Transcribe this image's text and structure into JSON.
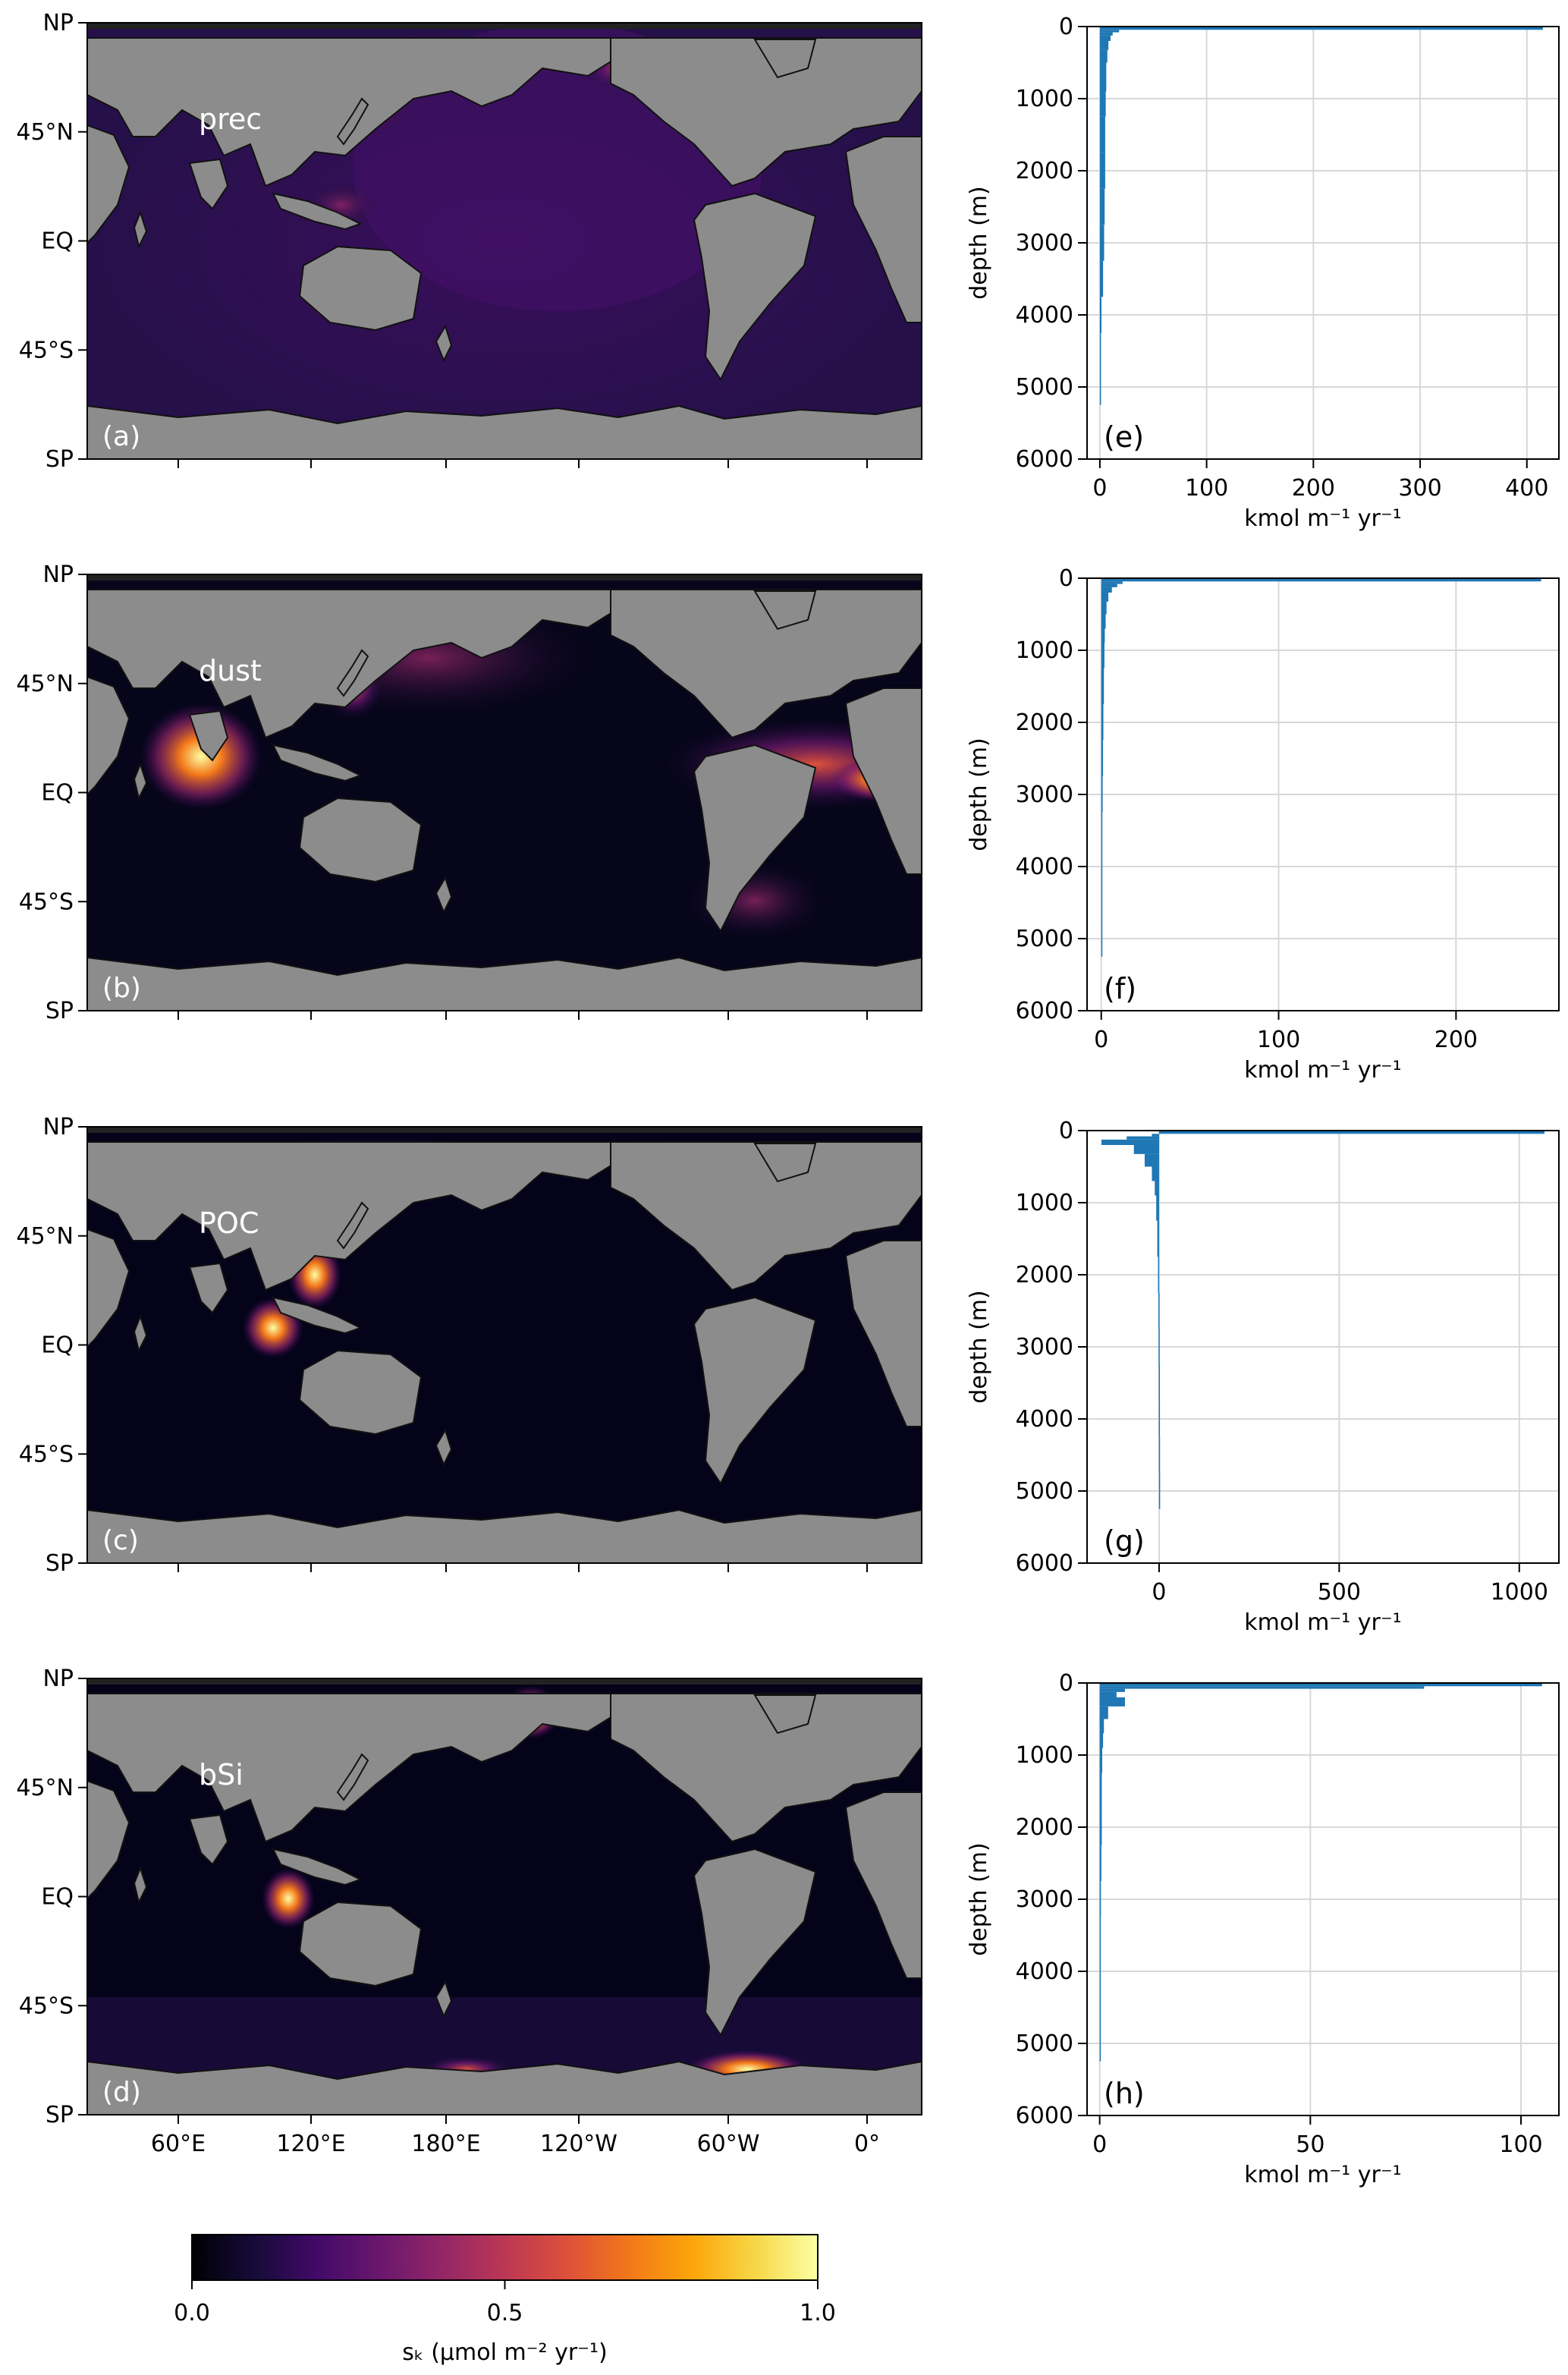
{
  "map_axis": {
    "lat_ticks": [
      "NP",
      "45°N",
      "EQ",
      "45°S",
      "SP"
    ],
    "lon_ticks": [
      "60°E",
      "120°E",
      "180°E",
      "120°W",
      "60°W",
      "0°"
    ]
  },
  "colorbar": {
    "ticks": [
      "0.0",
      "0.5",
      "1.0"
    ],
    "label": "sₖ (μmol m⁻² yr⁻¹)",
    "colormap": "inferno",
    "range": [
      0.0,
      1.0
    ]
  },
  "colors": {
    "land": "#8c8c8c",
    "antarctic_ice": "#3c3c3c",
    "profile_bar": "#1f77b4",
    "grid": "#d8d8d8"
  },
  "panels": [
    {
      "map_panel": "(a)",
      "profile_panel": "(e)",
      "tracer": "prec"
    },
    {
      "map_panel": "(b)",
      "profile_panel": "(f)",
      "tracer": "dust"
    },
    {
      "map_panel": "(c)",
      "profile_panel": "(g)",
      "tracer": "POC"
    },
    {
      "map_panel": "(d)",
      "profile_panel": "(h)",
      "tracer": "bSi"
    }
  ],
  "chart_data": [
    {
      "type": "bar",
      "orientation": "horizontal",
      "panel": "(e)",
      "xlabel": "kmol m⁻¹ yr⁻¹",
      "ylabel": "depth (m)",
      "xlim": [
        -12,
        430
      ],
      "ylim": [
        6000,
        0
      ],
      "xticks": [
        0,
        100,
        200,
        300,
        400
      ],
      "yticks": [
        0,
        1000,
        2000,
        3000,
        4000,
        5000,
        6000
      ],
      "grid": true,
      "depths": [
        30,
        60,
        100,
        150,
        250,
        400,
        600,
        800,
        1000,
        1500,
        2000,
        2500,
        3000,
        3500,
        4000,
        4500,
        5000
      ],
      "values": [
        415,
        18,
        12,
        10,
        8,
        7,
        6,
        6,
        5.5,
        5,
        5,
        4.5,
        4,
        3,
        1.5,
        1,
        0.5
      ]
    },
    {
      "type": "bar",
      "orientation": "horizontal",
      "panel": "(f)",
      "xlabel": "kmol m⁻¹ yr⁻¹",
      "ylabel": "depth (m)",
      "xlim": [
        -8,
        258
      ],
      "ylim": [
        6000,
        0
      ],
      "xticks": [
        0,
        100,
        200
      ],
      "yticks": [
        0,
        1000,
        2000,
        3000,
        4000,
        5000,
        6000
      ],
      "grid": true,
      "depths": [
        30,
        60,
        100,
        150,
        250,
        400,
        600,
        800,
        1000,
        1500,
        2000,
        2500,
        3000,
        3500,
        4000,
        4500,
        5000
      ],
      "values": [
        248,
        12,
        9,
        6,
        4,
        3,
        2.5,
        2,
        1.8,
        1.5,
        1.2,
        1,
        0.8,
        0.6,
        0.4,
        0.3,
        0.2
      ]
    },
    {
      "type": "bar",
      "orientation": "horizontal",
      "panel": "(g)",
      "xlabel": "kmol m⁻¹ yr⁻¹",
      "ylabel": "depth (m)",
      "xlim": [
        -200,
        1110
      ],
      "ylim": [
        6000,
        0
      ],
      "xticks": [
        0,
        500,
        1000
      ],
      "yticks": [
        0,
        1000,
        2000,
        3000,
        4000,
        5000,
        6000
      ],
      "grid": true,
      "depths": [
        30,
        60,
        100,
        150,
        250,
        400,
        600,
        800,
        1000,
        1500,
        2000,
        2500,
        3000,
        3500,
        4000,
        4500,
        5000
      ],
      "values": [
        1070,
        -20,
        -90,
        -160,
        -70,
        -40,
        -20,
        -12,
        -8,
        -5,
        -3,
        -2,
        -1.5,
        -1,
        -0.8,
        -0.5,
        -0.3
      ]
    },
    {
      "type": "bar",
      "orientation": "horizontal",
      "panel": "(h)",
      "xlabel": "kmol m⁻¹ yr⁻¹",
      "ylabel": "depth (m)",
      "xlim": [
        -3,
        109
      ],
      "ylim": [
        6000,
        0
      ],
      "xticks": [
        0,
        50,
        100
      ],
      "yticks": [
        0,
        1000,
        2000,
        3000,
        4000,
        5000,
        6000
      ],
      "grid": true,
      "depths": [
        30,
        60,
        100,
        150,
        250,
        400,
        600,
        800,
        1000,
        1500,
        2000,
        2500,
        3000,
        3500,
        4000,
        4500,
        5000
      ],
      "values": [
        105,
        77,
        6,
        4,
        6,
        2,
        1,
        0.8,
        0.6,
        0.5,
        0.5,
        0.4,
        0.3,
        0.2,
        0.1,
        0.05,
        0.02
      ]
    }
  ]
}
